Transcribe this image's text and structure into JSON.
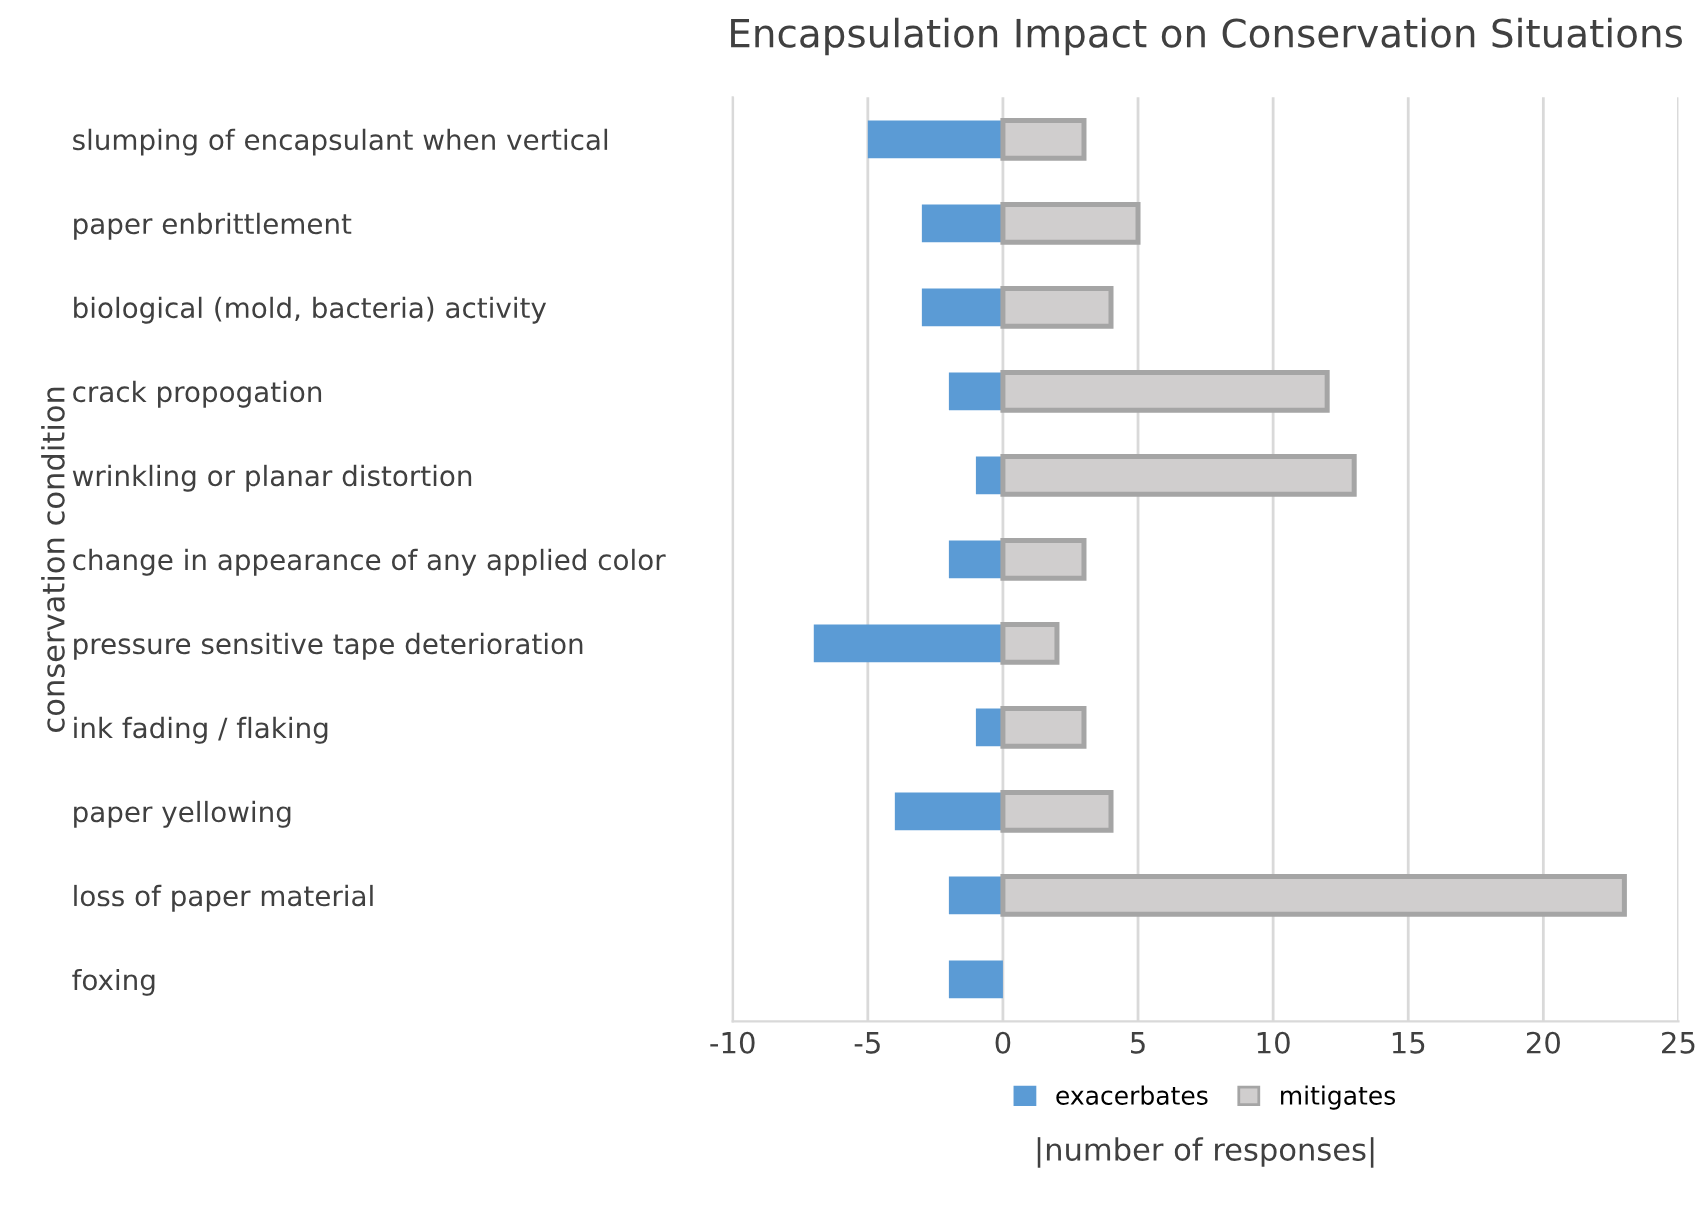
{
  "chart_data": {
    "type": "bar",
    "orientation": "horizontal",
    "stacked": true,
    "title": "Encapsulation Impact on Conservation Situations",
    "xlabel": "|number of responses|",
    "ylabel": "conservation condition",
    "categories": [
      "slumping of encapsulant when vertical",
      "paper enbrittlement",
      "biological (mold, bacteria) activity",
      "crack propogation",
      "wrinkling or planar distortion",
      "change in appearance of any applied color",
      "pressure sensitive tape deterioration",
      "ink fading / flaking",
      "paper yellowing",
      "loss of paper material",
      "foxing"
    ],
    "series": [
      {
        "name": "exacerbates",
        "color": "#5b9bd5",
        "values": [
          -5,
          -3,
          -3,
          -2,
          -1,
          -2,
          -7,
          -1,
          -4,
          -2,
          -2
        ]
      },
      {
        "name": "mitigates",
        "color": "#d0cece",
        "values": [
          3,
          5,
          4,
          12,
          13,
          3,
          2,
          3,
          4,
          23,
          null
        ]
      }
    ],
    "xlim": [
      -10,
      25
    ],
    "xticks": [
      -10,
      -5,
      0,
      5,
      10,
      15,
      20,
      25
    ],
    "grid": "x",
    "legend": "bottom"
  }
}
